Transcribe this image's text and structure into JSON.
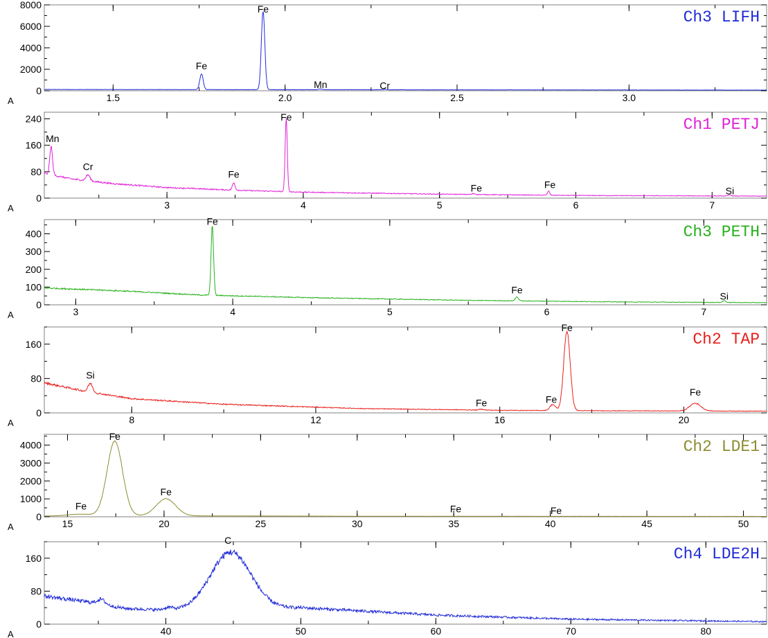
{
  "chart_data": [
    {
      "type": "line",
      "title": "Ch3 LIFH",
      "color": "#1f2ad6",
      "corner_label": "A",
      "xlim": [
        1.3,
        3.4
      ],
      "ylim": [
        0,
        8000
      ],
      "xticks": [
        "1.5",
        "2.0",
        "2.5",
        "3.0"
      ],
      "xtick_values": [
        1.5,
        2.0,
        2.5,
        3.0
      ],
      "yticks": [
        "0",
        "2000",
        "4000",
        "6000",
        "8000"
      ],
      "ytick_values": [
        0,
        2000,
        4000,
        6000,
        8000
      ],
      "baseline": {
        "x": [
          1.3,
          3.4
        ],
        "y": [
          120,
          60
        ],
        "noise": 15
      },
      "peaks": [
        {
          "x": 1.757,
          "h": 1450,
          "w": 0.005
        },
        {
          "x": 1.936,
          "h": 7350,
          "w": 0.005
        },
        {
          "x": 2.103,
          "h": 60,
          "w": 0.006
        },
        {
          "x": 2.29,
          "h": 40,
          "w": 0.006
        }
      ],
      "labels": [
        {
          "text": "Fe",
          "x": 1.757,
          "y": 2000
        },
        {
          "text": "Fe",
          "x": 1.936,
          "y": 7300
        },
        {
          "text": "Mn",
          "x": 2.103,
          "y": 250
        },
        {
          "text": "Cr",
          "x": 2.29,
          "y": 150
        }
      ]
    },
    {
      "type": "line",
      "title": "Ch1 PETJ",
      "color": "#e020d8",
      "corner_label": "A",
      "xlim": [
        2.1,
        7.4
      ],
      "ylim": [
        0,
        260
      ],
      "xticks": [
        "3",
        "4",
        "5",
        "6",
        "7"
      ],
      "xtick_values": [
        3,
        4,
        5,
        6,
        7
      ],
      "yticks": [
        "0",
        "80",
        "160",
        "240"
      ],
      "ytick_values": [
        0,
        80,
        160,
        240
      ],
      "baseline": {
        "x": [
          2.1,
          2.3,
          2.6,
          3.0,
          3.5,
          4.0,
          5.0,
          6.0,
          7.4
        ],
        "y": [
          75,
          58,
          44,
          32,
          24,
          18,
          12,
          8,
          6
        ],
        "noise": 3
      },
      "peaks": [
        {
          "x": 2.15,
          "h": 85,
          "w": 0.01
        },
        {
          "x": 2.42,
          "h": 18,
          "w": 0.015
        },
        {
          "x": 3.49,
          "h": 22,
          "w": 0.01
        },
        {
          "x": 3.875,
          "h": 220,
          "w": 0.008
        },
        {
          "x": 5.25,
          "h": 3,
          "w": 0.01
        },
        {
          "x": 5.8,
          "h": 12,
          "w": 0.008
        },
        {
          "x": 7.13,
          "h": 4,
          "w": 0.01
        }
      ],
      "labels": [
        {
          "text": "Mn",
          "x": 2.16,
          "y": 170
        },
        {
          "text": "Cr",
          "x": 2.42,
          "y": 85
        },
        {
          "text": "Fe",
          "x": 3.49,
          "y": 62
        },
        {
          "text": "Fe",
          "x": 3.875,
          "y": 235
        },
        {
          "text": "Fe",
          "x": 5.27,
          "y": 20
        },
        {
          "text": "Fe",
          "x": 5.81,
          "y": 30
        },
        {
          "text": "Si",
          "x": 7.13,
          "y": 12
        }
      ]
    },
    {
      "type": "line",
      "title": "Ch3 PETH",
      "color": "#28b01c",
      "corner_label": "A",
      "xlim": [
        2.8,
        7.4
      ],
      "ylim": [
        0,
        480
      ],
      "xticks": [
        "3",
        "4",
        "5",
        "6",
        "7"
      ],
      "xtick_values": [
        3,
        4,
        5,
        6,
        7
      ],
      "yticks": [
        "0",
        "100",
        "200",
        "300",
        "400"
      ],
      "ytick_values": [
        0,
        100,
        200,
        300,
        400
      ],
      "baseline": {
        "x": [
          2.8,
          3.3,
          3.8,
          4.5,
          5.5,
          6.5,
          7.4
        ],
        "y": [
          95,
          78,
          55,
          40,
          25,
          16,
          12
        ],
        "noise": 4
      },
      "peaks": [
        {
          "x": 3.87,
          "h": 390,
          "w": 0.008
        },
        {
          "x": 5.81,
          "h": 22,
          "w": 0.01
        },
        {
          "x": 7.13,
          "h": 10,
          "w": 0.01
        }
      ],
      "labels": [
        {
          "text": "Fe",
          "x": 3.87,
          "y": 450
        },
        {
          "text": "Fe",
          "x": 5.81,
          "y": 65
        },
        {
          "text": "Si",
          "x": 7.13,
          "y": 30
        }
      ]
    },
    {
      "type": "line",
      "title": "Ch2 TAP",
      "color": "#e8201c",
      "corner_label": "A",
      "xlim": [
        6.1,
        21.8
      ],
      "ylim": [
        0,
        200
      ],
      "xticks": [
        "8",
        "12",
        "16",
        "20"
      ],
      "xtick_values": [
        8,
        12,
        16,
        20
      ],
      "yticks": [
        "0",
        "80",
        "160"
      ],
      "ytick_values": [
        0,
        80,
        160
      ],
      "baseline": {
        "x": [
          6.1,
          7.0,
          8.0,
          10.0,
          13.0,
          16.0,
          18.0,
          21.8
        ],
        "y": [
          70,
          50,
          33,
          20,
          10,
          6,
          5,
          4
        ],
        "noise": 2.5
      },
      "peaks": [
        {
          "x": 7.1,
          "h": 20,
          "w": 0.05
        },
        {
          "x": 15.6,
          "h": 2,
          "w": 0.05
        },
        {
          "x": 17.15,
          "h": 14,
          "w": 0.06
        },
        {
          "x": 17.46,
          "h": 185,
          "w": 0.07
        },
        {
          "x": 20.25,
          "h": 18,
          "w": 0.12
        }
      ],
      "labels": [
        {
          "text": "Si",
          "x": 7.1,
          "y": 80
        },
        {
          "text": "Fe",
          "x": 15.6,
          "y": 15
        },
        {
          "text": "Fe",
          "x": 17.12,
          "y": 23
        },
        {
          "text": "Fe",
          "x": 17.46,
          "y": 190
        },
        {
          "text": "Fe",
          "x": 20.25,
          "y": 40
        }
      ]
    },
    {
      "type": "line",
      "title": "Ch2 LDE1",
      "color": "#8b8d30",
      "corner_label": "A",
      "xlim": [
        13.8,
        51.2
      ],
      "ylim": [
        0,
        4600
      ],
      "xticks": [
        "15",
        "20",
        "25",
        "30",
        "35",
        "40",
        "45",
        "50"
      ],
      "xtick_values": [
        15,
        20,
        25,
        30,
        35,
        40,
        45,
        50
      ],
      "yticks": [
        "0",
        "1000",
        "2000",
        "3000",
        "4000"
      ],
      "ytick_values": [
        0,
        1000,
        2000,
        3000,
        4000
      ],
      "baseline": {
        "x": [
          13.8,
          16.0,
          22.0,
          30.0,
          51.2
        ],
        "y": [
          40,
          60,
          50,
          30,
          20
        ],
        "noise": 4
      },
      "peaks": [
        {
          "x": 15.6,
          "h": 90,
          "w": 0.6
        },
        {
          "x": 17.45,
          "h": 4150,
          "w": 0.4
        },
        {
          "x": 20.1,
          "h": 950,
          "w": 0.5
        }
      ],
      "labels": [
        {
          "text": "Fe",
          "x": 15.7,
          "y": 400
        },
        {
          "text": "Fe",
          "x": 17.45,
          "y": 4300
        },
        {
          "text": "Fe",
          "x": 20.1,
          "y": 1200
        },
        {
          "text": "Fe",
          "x": 35.1,
          "y": 250
        },
        {
          "text": "Fe",
          "x": 40.3,
          "y": 150
        }
      ]
    },
    {
      "type": "line",
      "title": "Ch4 LDE2H",
      "color": "#1f2ad6",
      "corner_label": "A",
      "xlim": [
        31.0,
        84.5
      ],
      "ylim": [
        0,
        200
      ],
      "xticks": [
        "40",
        "50",
        "60",
        "70",
        "80"
      ],
      "xtick_values": [
        40,
        50,
        60,
        70,
        80
      ],
      "yticks": [
        "0",
        "80",
        "160"
      ],
      "ytick_values": [
        0,
        80,
        160
      ],
      "baseline": {
        "x": [
          31.0,
          34.0,
          37.0,
          40.0,
          44.0,
          50.0,
          60.0,
          70.0,
          84.5
        ],
        "y": [
          68,
          55,
          38,
          34,
          34,
          40,
          22,
          12,
          6
        ],
        "noise": 5
      },
      "peaks": [
        {
          "x": 35.2,
          "h": 12,
          "w": 0.3
        },
        {
          "x": 40.2,
          "h": 6,
          "w": 0.3
        },
        {
          "x": 44.8,
          "h": 140,
          "w": 1.5
        }
      ],
      "labels": [
        {
          "text": "C",
          "x": 44.6,
          "y": 195
        }
      ]
    }
  ]
}
